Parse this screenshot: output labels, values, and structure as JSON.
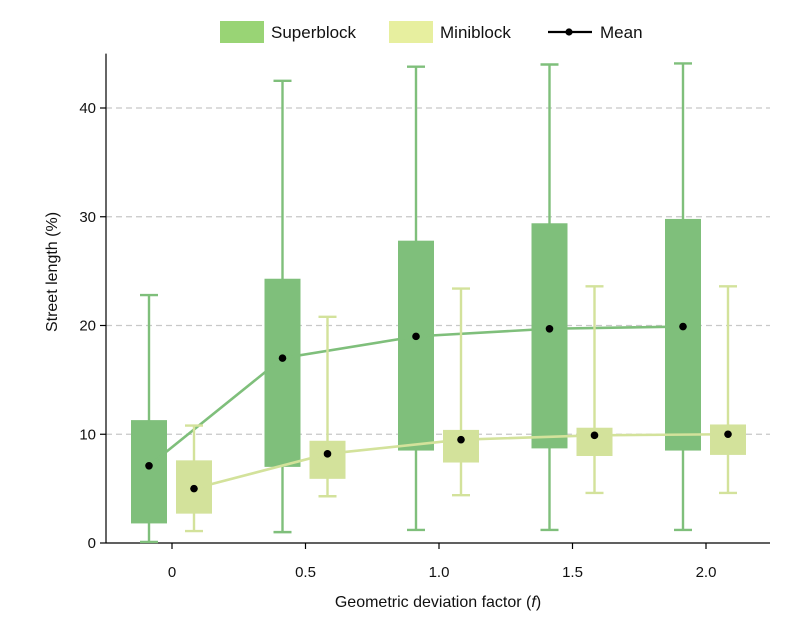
{
  "chart_data": {
    "type": "box",
    "xlabel": "Geometric deviation factor (",
    "xlabel_var": "f",
    "xlabel_end": ")",
    "ylabel": "Street length (%)",
    "categories": [
      "0",
      "0.5",
      "1.0",
      "1.5",
      "2.0"
    ],
    "ylim": [
      0,
      45
    ],
    "yticks": [
      0,
      10,
      20,
      30,
      40
    ],
    "grid": "horizontal dashed",
    "legend_position": "top",
    "legend": {
      "superblock": "Superblock",
      "miniblock": "Miniblock",
      "mean": "Mean"
    },
    "series": [
      {
        "name": "Superblock",
        "color": "#7fbf7b",
        "boxes": [
          {
            "min": 0.1,
            "q1": 1.8,
            "q3": 11.3,
            "max": 22.8,
            "mean": 7.1
          },
          {
            "min": 1.0,
            "q1": 7.0,
            "q3": 24.3,
            "max": 42.5,
            "mean": 17.0
          },
          {
            "min": 1.2,
            "q1": 8.5,
            "q3": 27.8,
            "max": 43.8,
            "mean": 19.0
          },
          {
            "min": 1.2,
            "q1": 8.7,
            "q3": 29.4,
            "max": 44.0,
            "mean": 19.7
          },
          {
            "min": 1.2,
            "q1": 8.5,
            "q3": 29.8,
            "max": 44.1,
            "mean": 19.9
          }
        ]
      },
      {
        "name": "Miniblock",
        "color": "#d3e29b",
        "boxes": [
          {
            "min": 1.1,
            "q1": 2.7,
            "q3": 7.6,
            "max": 10.8,
            "mean": 5.0
          },
          {
            "min": 4.3,
            "q1": 5.9,
            "q3": 9.4,
            "max": 20.8,
            "mean": 8.2
          },
          {
            "min": 4.4,
            "q1": 7.4,
            "q3": 10.4,
            "max": 23.4,
            "mean": 9.5
          },
          {
            "min": 4.6,
            "q1": 8.0,
            "q3": 10.6,
            "max": 23.6,
            "mean": 9.9
          },
          {
            "min": 4.6,
            "q1": 8.1,
            "q3": 10.9,
            "max": 23.6,
            "mean": 10.0
          }
        ]
      }
    ],
    "colors": {
      "superblock_fill": "#7fbf7b",
      "superblock_line": "#7fbf7b",
      "miniblock_fill": "#d3e29b",
      "miniblock_line": "#d3e29b",
      "legend_superblock": "#99d475",
      "legend_miniblock": "#e7ef9f",
      "mean": "#000000",
      "grid": "#c8c8c8",
      "axis": "#000000"
    }
  }
}
